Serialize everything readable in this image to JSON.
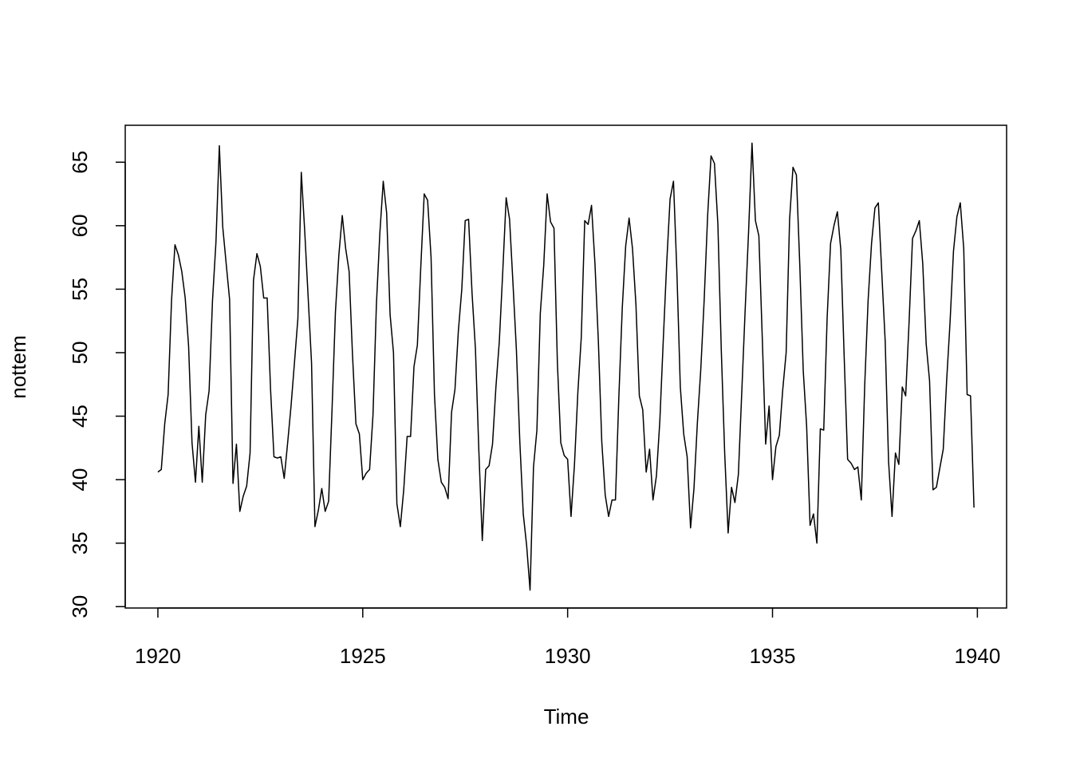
{
  "chart_data": {
    "type": "line",
    "xlabel": "Time",
    "ylabel": "nottem",
    "x": [
      1920,
      1920.083,
      1920.167,
      1920.25,
      1920.333,
      1920.417,
      1920.5,
      1920.583,
      1920.667,
      1920.75,
      1920.833,
      1920.917,
      1921,
      1921.083,
      1921.167,
      1921.25,
      1921.333,
      1921.417,
      1921.5,
      1921.583,
      1921.667,
      1921.75,
      1921.833,
      1921.917,
      1922,
      1922.083,
      1922.167,
      1922.25,
      1922.333,
      1922.417,
      1922.5,
      1922.583,
      1922.667,
      1922.75,
      1922.833,
      1922.917,
      1923,
      1923.083,
      1923.167,
      1923.25,
      1923.333,
      1923.417,
      1923.5,
      1923.583,
      1923.667,
      1923.75,
      1923.833,
      1923.917,
      1924,
      1924.083,
      1924.167,
      1924.25,
      1924.333,
      1924.417,
      1924.5,
      1924.583,
      1924.667,
      1924.75,
      1924.833,
      1924.917,
      1925,
      1925.083,
      1925.167,
      1925.25,
      1925.333,
      1925.417,
      1925.5,
      1925.583,
      1925.667,
      1925.75,
      1925.833,
      1925.917,
      1926,
      1926.083,
      1926.167,
      1926.25,
      1926.333,
      1926.417,
      1926.5,
      1926.583,
      1926.667,
      1926.75,
      1926.833,
      1926.917,
      1927,
      1927.083,
      1927.167,
      1927.25,
      1927.333,
      1927.417,
      1927.5,
      1927.583,
      1927.667,
      1927.75,
      1927.833,
      1927.917,
      1928,
      1928.083,
      1928.167,
      1928.25,
      1928.333,
      1928.417,
      1928.5,
      1928.583,
      1928.667,
      1928.75,
      1928.833,
      1928.917,
      1929,
      1929.083,
      1929.167,
      1929.25,
      1929.333,
      1929.417,
      1929.5,
      1929.583,
      1929.667,
      1929.75,
      1929.833,
      1929.917,
      1930,
      1930.083,
      1930.167,
      1930.25,
      1930.333,
      1930.417,
      1930.5,
      1930.583,
      1930.667,
      1930.75,
      1930.833,
      1930.917,
      1931,
      1931.083,
      1931.167,
      1931.25,
      1931.333,
      1931.417,
      1931.5,
      1931.583,
      1931.667,
      1931.75,
      1931.833,
      1931.917,
      1932,
      1932.083,
      1932.167,
      1932.25,
      1932.333,
      1932.417,
      1932.5,
      1932.583,
      1932.667,
      1932.75,
      1932.833,
      1932.917,
      1933,
      1933.083,
      1933.167,
      1933.25,
      1933.333,
      1933.417,
      1933.5,
      1933.583,
      1933.667,
      1933.75,
      1933.833,
      1933.917,
      1934,
      1934.083,
      1934.167,
      1934.25,
      1934.333,
      1934.417,
      1934.5,
      1934.583,
      1934.667,
      1934.75,
      1934.833,
      1934.917,
      1935,
      1935.083,
      1935.167,
      1935.25,
      1935.333,
      1935.417,
      1935.5,
      1935.583,
      1935.667,
      1935.75,
      1935.833,
      1935.917,
      1936,
      1936.083,
      1936.167,
      1936.25,
      1936.333,
      1936.417,
      1936.5,
      1936.583,
      1936.667,
      1936.75,
      1936.833,
      1936.917,
      1937,
      1937.083,
      1937.167,
      1937.25,
      1937.333,
      1937.417,
      1937.5,
      1937.583,
      1937.667,
      1937.75,
      1937.833,
      1937.917,
      1938,
      1938.083,
      1938.167,
      1938.25,
      1938.333,
      1938.417,
      1938.5,
      1938.583,
      1938.667,
      1938.75,
      1938.833,
      1938.917,
      1939,
      1939.083,
      1939.167,
      1939.25,
      1939.333,
      1939.417,
      1939.5,
      1939.583,
      1939.667,
      1939.75,
      1939.833,
      1939.917
    ],
    "series": [
      {
        "color": "#000000",
        "values": [
          40.6,
          40.8,
          44.4,
          46.7,
          54.1,
          58.5,
          57.7,
          56.4,
          54.3,
          50.5,
          42.9,
          39.8,
          44.2,
          39.8,
          45.1,
          47.0,
          54.1,
          58.7,
          66.3,
          59.9,
          57.0,
          54.2,
          39.7,
          42.8,
          37.5,
          38.7,
          39.5,
          42.1,
          55.7,
          57.8,
          56.8,
          54.3,
          54.3,
          47.1,
          41.8,
          41.7,
          41.8,
          40.1,
          42.9,
          45.8,
          49.2,
          52.7,
          64.2,
          59.6,
          54.4,
          49.2,
          36.3,
          37.6,
          39.3,
          37.5,
          38.3,
          45.5,
          53.2,
          57.7,
          60.8,
          58.2,
          56.4,
          49.8,
          44.4,
          43.6,
          40.0,
          40.5,
          40.8,
          45.1,
          53.8,
          59.4,
          63.5,
          61.0,
          53.0,
          50.0,
          38.1,
          36.3,
          39.2,
          43.4,
          43.4,
          48.9,
          50.6,
          56.8,
          62.5,
          62.0,
          57.5,
          46.7,
          41.6,
          39.8,
          39.4,
          38.5,
          45.3,
          47.1,
          51.7,
          55.0,
          60.4,
          60.5,
          54.7,
          50.3,
          42.3,
          35.2,
          40.8,
          41.1,
          42.8,
          47.3,
          50.9,
          56.4,
          62.2,
          60.5,
          55.4,
          50.2,
          43.0,
          37.3,
          34.8,
          31.3,
          41.0,
          43.9,
          53.1,
          56.9,
          62.5,
          60.3,
          59.8,
          49.2,
          42.9,
          41.9,
          41.6,
          37.1,
          41.2,
          46.9,
          51.2,
          60.4,
          60.1,
          61.6,
          57.0,
          50.9,
          43.0,
          38.8,
          37.1,
          38.4,
          38.4,
          46.5,
          53.5,
          58.4,
          60.6,
          58.2,
          53.8,
          46.6,
          45.5,
          40.6,
          42.4,
          38.4,
          40.3,
          44.6,
          50.9,
          57.0,
          62.1,
          63.5,
          56.3,
          47.3,
          43.6,
          41.8,
          36.2,
          39.3,
          44.5,
          48.7,
          54.2,
          60.8,
          65.5,
          64.9,
          60.1,
          50.2,
          42.1,
          35.8,
          39.4,
          38.2,
          40.4,
          46.9,
          53.4,
          59.6,
          66.5,
          60.4,
          59.2,
          51.2,
          42.8,
          45.8,
          40.0,
          42.6,
          43.5,
          47.1,
          50.0,
          60.5,
          64.6,
          64.0,
          56.8,
          48.6,
          44.2,
          36.4,
          37.3,
          35.0,
          44.0,
          43.9,
          52.7,
          58.6,
          60.0,
          61.1,
          58.1,
          49.6,
          41.6,
          41.3,
          40.8,
          41.0,
          38.4,
          47.4,
          54.1,
          58.6,
          61.4,
          61.8,
          56.3,
          50.9,
          41.4,
          37.1,
          42.1,
          41.2,
          47.3,
          46.6,
          52.4,
          59.0,
          59.6,
          60.4,
          57.0,
          50.7,
          47.8,
          39.2,
          39.4,
          40.9,
          42.4,
          47.8,
          52.4,
          58.0,
          60.7,
          61.8,
          58.2,
          46.7,
          46.6,
          37.8
        ]
      }
    ],
    "xlim": [
      1919.203,
      1940.713
    ],
    "xticks": [
      1920,
      1925,
      1930,
      1935,
      1940
    ],
    "ylim": [
      29.892,
      67.908
    ],
    "yticks": [
      30,
      35,
      40,
      45,
      50,
      55,
      60,
      65
    ]
  }
}
